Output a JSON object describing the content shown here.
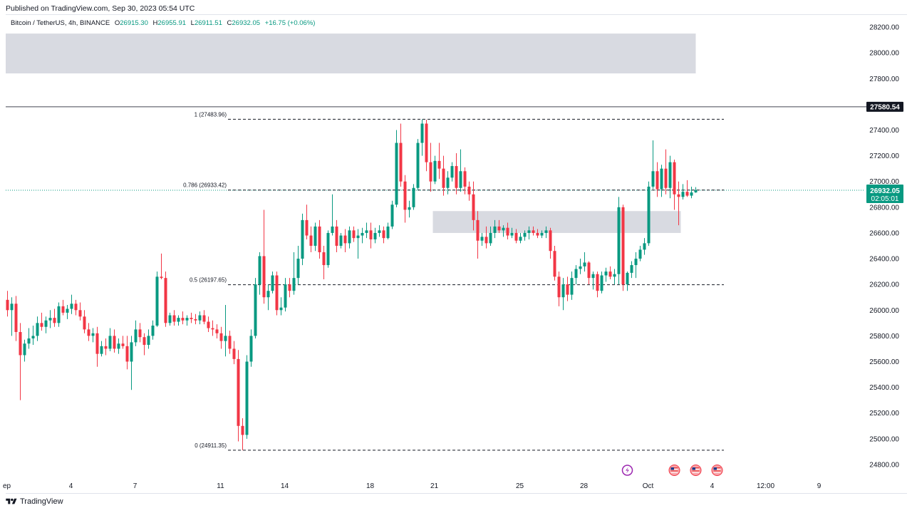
{
  "header": {
    "published": "Published on TradingView.com, Sep 30, 2023 05:54 UTC"
  },
  "legend": {
    "symbol": "Bitcoin / TetherUS, 4h, BINANCE",
    "o_label": "O",
    "o_value": "26915.30",
    "h_label": "H",
    "h_value": "26955.91",
    "l_label": "L",
    "l_value": "26911.51",
    "c_label": "C",
    "c_value": "26932.05",
    "change": "+16.75 (+0.06%)"
  },
  "footer": {
    "brand": "TradingView"
  },
  "colors": {
    "up": "#089981",
    "down": "#f23645",
    "zone": "#d1d4dc",
    "last_price_bg": "#089981",
    "level_line": "#434651",
    "level_bg": "#131722"
  },
  "chart_data": {
    "type": "candlestick",
    "symbol": "BTCUSDT",
    "interval": "4h",
    "exchange": "BINANCE",
    "ylim": [
      24700,
      28300
    ],
    "y_ticks": [
      24800,
      25000,
      25200,
      25400,
      25600,
      25800,
      26000,
      26200,
      26400,
      26600,
      26800,
      27000,
      27200,
      27400,
      27600,
      27800,
      28000,
      28200
    ],
    "x_ticks": [
      {
        "label": "ep",
        "bar": 0
      },
      {
        "label": "4",
        "bar": 15
      },
      {
        "label": "7",
        "bar": 30
      },
      {
        "label": "11",
        "bar": 50
      },
      {
        "label": "14",
        "bar": 65
      },
      {
        "label": "18",
        "bar": 85
      },
      {
        "label": "21",
        "bar": 100
      },
      {
        "label": "25",
        "bar": 120
      },
      {
        "label": "28",
        "bar": 135
      },
      {
        "label": "Oct",
        "bar": 150
      },
      {
        "label": "4",
        "bar": 165
      },
      {
        "label": "12:00",
        "bar": 177.5
      },
      {
        "label": "9",
        "bar": 190
      }
    ],
    "fib_levels": [
      {
        "label": "1 (27483.96)",
        "value": 27483.96
      },
      {
        "label": "0.786 (26933.42)",
        "value": 26933.42
      },
      {
        "label": "0.5 (26197.65)",
        "value": 26197.65
      },
      {
        "label": "0 (24911.35)",
        "value": 24911.35
      }
    ],
    "zones": [
      {
        "name": "supply-zone",
        "from_bar": 0,
        "to_bar": 161,
        "low": 27840,
        "high": 28150
      },
      {
        "name": "demand-zone",
        "from_bar": 100,
        "to_bar": 157.5,
        "low": 26600,
        "high": 26770
      }
    ],
    "horizontal_levels": [
      {
        "value": 27580.54,
        "label": "27580.54"
      }
    ],
    "last_price": {
      "value": 26932.05,
      "label": "26932.05",
      "countdown": "02:05:01"
    },
    "event_icons": [
      {
        "type": "dividend-icon",
        "bar": 145
      },
      {
        "type": "flag-icon",
        "bar": 156
      },
      {
        "type": "flag-icon",
        "bar": 161
      },
      {
        "type": "flag-icon",
        "bar": 166
      }
    ],
    "candles": [
      [
        26080,
        26150,
        25950,
        26000
      ],
      [
        26000,
        26100,
        25800,
        26050
      ],
      [
        26050,
        26110,
        25760,
        25830
      ],
      [
        25830,
        25900,
        25300,
        25650
      ],
      [
        25650,
        25770,
        25600,
        25740
      ],
      [
        25740,
        25860,
        25700,
        25780
      ],
      [
        25780,
        25880,
        25730,
        25800
      ],
      [
        25800,
        25950,
        25760,
        25900
      ],
      [
        25900,
        25980,
        25840,
        25870
      ],
      [
        25870,
        25950,
        25820,
        25920
      ],
      [
        25920,
        26000,
        25860,
        25940
      ],
      [
        25940,
        26010,
        25870,
        25900
      ],
      [
        25900,
        26060,
        25870,
        26030
      ],
      [
        26030,
        26080,
        25960,
        25980
      ],
      [
        25980,
        26040,
        25930,
        26010
      ],
      [
        26010,
        26120,
        25970,
        26050
      ],
      [
        26050,
        26080,
        25960,
        26000
      ],
      [
        26000,
        26060,
        25920,
        25950
      ],
      [
        25950,
        26000,
        25820,
        25850
      ],
      [
        25850,
        25900,
        25760,
        25800
      ],
      [
        25800,
        25860,
        25750,
        25820
      ],
      [
        25820,
        25870,
        25560,
        25660
      ],
      [
        25660,
        25760,
        25640,
        25720
      ],
      [
        25720,
        25780,
        25650,
        25700
      ],
      [
        25700,
        25860,
        25680,
        25800
      ],
      [
        25800,
        25850,
        25670,
        25700
      ],
      [
        25700,
        25780,
        25660,
        25740
      ],
      [
        25740,
        25800,
        25700,
        25720
      ],
      [
        25720,
        25800,
        25540,
        25600
      ],
      [
        25600,
        25800,
        25380,
        25750
      ],
      [
        25750,
        25920,
        25720,
        25850
      ],
      [
        25850,
        25900,
        25750,
        25790
      ],
      [
        25790,
        25820,
        25650,
        25730
      ],
      [
        25730,
        25850,
        25700,
        25800
      ],
      [
        25800,
        25920,
        25770,
        25880
      ],
      [
        25880,
        26300,
        25870,
        26260
      ],
      [
        26260,
        26440,
        26240,
        26250
      ],
      [
        26250,
        26300,
        25870,
        25900
      ],
      [
        25900,
        25980,
        25880,
        25960
      ],
      [
        25960,
        26000,
        25880,
        25910
      ],
      [
        25910,
        25960,
        25880,
        25940
      ],
      [
        25940,
        25990,
        25890,
        25920
      ],
      [
        25920,
        25960,
        25880,
        25940
      ],
      [
        25940,
        25980,
        25900,
        25930
      ],
      [
        25930,
        25970,
        25890,
        25920
      ],
      [
        25920,
        25990,
        25890,
        25960
      ],
      [
        25960,
        26000,
        25890,
        25910
      ],
      [
        25910,
        25950,
        25830,
        25860
      ],
      [
        25860,
        25920,
        25800,
        25850
      ],
      [
        25850,
        25890,
        25780,
        25820
      ],
      [
        25820,
        25870,
        25700,
        25760
      ],
      [
        25760,
        26040,
        25640,
        25800
      ],
      [
        25800,
        25840,
        25660,
        25700
      ],
      [
        25700,
        25760,
        25580,
        25620
      ],
      [
        25620,
        25690,
        24980,
        25100
      ],
      [
        25100,
        25160,
        24911,
        25030
      ],
      [
        25030,
        25650,
        25000,
        25600
      ],
      [
        25600,
        25850,
        25560,
        25800
      ],
      [
        25800,
        26250,
        25780,
        26200
      ],
      [
        26200,
        26450,
        26120,
        26420
      ],
      [
        26420,
        26780,
        26050,
        26100
      ],
      [
        26100,
        26200,
        26000,
        26150
      ],
      [
        26150,
        26300,
        26130,
        26270
      ],
      [
        26270,
        26300,
        25960,
        26000
      ],
      [
        26000,
        26100,
        25960,
        26020
      ],
      [
        26020,
        26250,
        25990,
        26200
      ],
      [
        26200,
        26250,
        26100,
        26150
      ],
      [
        26150,
        26450,
        26120,
        26250
      ],
      [
        26250,
        26500,
        26200,
        26400
      ],
      [
        26400,
        26750,
        26350,
        26700
      ],
      [
        26700,
        26820,
        26550,
        26580
      ],
      [
        26580,
        26650,
        26450,
        26500
      ],
      [
        26500,
        26680,
        26460,
        26650
      ],
      [
        26650,
        26700,
        26400,
        26450
      ],
      [
        26450,
        26500,
        26240,
        26350
      ],
      [
        26350,
        26620,
        26330,
        26600
      ],
      [
        26600,
        26900,
        26580,
        26650
      ],
      [
        26650,
        26700,
        26450,
        26500
      ],
      [
        26500,
        26600,
        26480,
        26580
      ],
      [
        26580,
        26630,
        26450,
        26520
      ],
      [
        26520,
        26650,
        26480,
        26620
      ],
      [
        26620,
        26650,
        26530,
        26560
      ],
      [
        26560,
        26630,
        26400,
        26580
      ],
      [
        26580,
        26640,
        26520,
        26600
      ],
      [
        26600,
        26680,
        26560,
        26620
      ],
      [
        26620,
        26680,
        26480,
        26550
      ],
      [
        26550,
        26640,
        26520,
        26600
      ],
      [
        26600,
        26660,
        26570,
        26620
      ],
      [
        26620,
        26650,
        26520,
        26560
      ],
      [
        26560,
        26680,
        26550,
        26650
      ],
      [
        26650,
        26850,
        26630,
        26820
      ],
      [
        26820,
        27400,
        26800,
        27300
      ],
      [
        27300,
        27450,
        26960,
        27000
      ],
      [
        27000,
        27050,
        26680,
        26780
      ],
      [
        26780,
        26850,
        26720,
        26800
      ],
      [
        26800,
        26980,
        26780,
        26950
      ],
      [
        26950,
        27330,
        26930,
        27300
      ],
      [
        27300,
        27483,
        27200,
        27450
      ],
      [
        27450,
        27480,
        27080,
        27150
      ],
      [
        27150,
        27300,
        26920,
        27000
      ],
      [
        27000,
        27200,
        26980,
        27160
      ],
      [
        27160,
        27300,
        27020,
        27100
      ],
      [
        27100,
        27200,
        26890,
        26950
      ],
      [
        26950,
        27080,
        26900,
        27030
      ],
      [
        27030,
        27150,
        27000,
        27120
      ],
      [
        27120,
        27220,
        26900,
        26950
      ],
      [
        26950,
        27250,
        26920,
        27080
      ],
      [
        27080,
        27110,
        26900,
        26960
      ],
      [
        26960,
        27000,
        26850,
        26900
      ],
      [
        26900,
        27000,
        26620,
        26700
      ],
      [
        26700,
        26770,
        26400,
        26540
      ],
      [
        26540,
        26600,
        26500,
        26570
      ],
      [
        26570,
        26650,
        26480,
        26520
      ],
      [
        26520,
        26650,
        26500,
        26600
      ],
      [
        26600,
        26700,
        26560,
        26650
      ],
      [
        26650,
        26700,
        26600,
        26620
      ],
      [
        26620,
        26660,
        26570,
        26640
      ],
      [
        26640,
        26680,
        26550,
        26580
      ],
      [
        26580,
        26640,
        26560,
        26600
      ],
      [
        26600,
        26630,
        26520,
        26540
      ],
      [
        26540,
        26600,
        26520,
        26570
      ],
      [
        26570,
        26620,
        26540,
        26600
      ],
      [
        26600,
        26650,
        26550,
        26620
      ],
      [
        26620,
        26650,
        26580,
        26600
      ],
      [
        26600,
        26630,
        26560,
        26580
      ],
      [
        26580,
        26620,
        26560,
        26600
      ],
      [
        26600,
        26650,
        26560,
        26620
      ],
      [
        26620,
        26640,
        26400,
        26460
      ],
      [
        26460,
        26500,
        26230,
        26260
      ],
      [
        26260,
        26300,
        26030,
        26100
      ],
      [
        26100,
        26250,
        26000,
        26200
      ],
      [
        26200,
        26260,
        26070,
        26120
      ],
      [
        26120,
        26300,
        26080,
        26250
      ],
      [
        26250,
        26350,
        26200,
        26320
      ],
      [
        26320,
        26400,
        26280,
        26340
      ],
      [
        26340,
        26450,
        26300,
        26370
      ],
      [
        26370,
        26380,
        26200,
        26250
      ],
      [
        26250,
        26300,
        26160,
        26280
      ],
      [
        26280,
        26300,
        26100,
        26150
      ],
      [
        26150,
        26300,
        26130,
        26270
      ],
      [
        26270,
        26330,
        26220,
        26300
      ],
      [
        26300,
        26340,
        26240,
        26260
      ],
      [
        26260,
        26320,
        26200,
        26280
      ],
      [
        26280,
        26880,
        26200,
        26800
      ],
      [
        26800,
        26820,
        26150,
        26200
      ],
      [
        26200,
        26300,
        26150,
        26290
      ],
      [
        26290,
        26380,
        26250,
        26350
      ],
      [
        26350,
        26450,
        26250,
        26400
      ],
      [
        26400,
        26500,
        26380,
        26470
      ],
      [
        26470,
        26560,
        26430,
        26520
      ],
      [
        26520,
        27000,
        26500,
        26960
      ],
      [
        26960,
        27320,
        26940,
        27080
      ],
      [
        27080,
        27150,
        26880,
        26940
      ],
      [
        26940,
        27130,
        26880,
        27100
      ],
      [
        27100,
        27250,
        26900,
        26950
      ],
      [
        26950,
        27200,
        26870,
        27150
      ],
      [
        27150,
        27170,
        26780,
        26900
      ],
      [
        26900,
        27000,
        26660,
        26880
      ],
      [
        26880,
        26980,
        26860,
        26920
      ],
      [
        26920,
        27010,
        26880,
        26890
      ],
      [
        26890,
        26960,
        26870,
        26915
      ],
      [
        26915,
        26956,
        26912,
        26932
      ]
    ]
  }
}
